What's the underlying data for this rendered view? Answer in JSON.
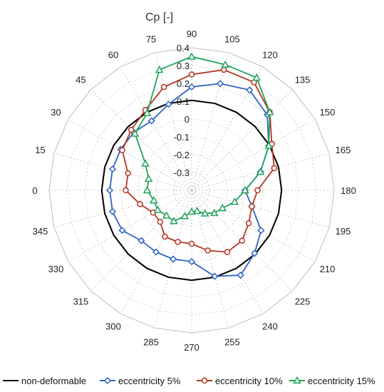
{
  "chart_data": {
    "type": "polar-line",
    "title": "Cp [-]",
    "angles": [
      0,
      15,
      30,
      45,
      60,
      75,
      90,
      105,
      120,
      135,
      150,
      165,
      180,
      195,
      210,
      225,
      240,
      255,
      270,
      285,
      300,
      315,
      330,
      345
    ],
    "angle_labels": [
      "0",
      "15",
      "30",
      "45",
      "60",
      "75",
      "90",
      "105",
      "120",
      "135",
      "150",
      "165",
      "180",
      "195",
      "210",
      "225",
      "240",
      "255",
      "270",
      "285",
      "300",
      "315",
      "330",
      "345"
    ],
    "rlim": [
      -0.4,
      0.4
    ],
    "r_ticks": [
      -0.3,
      -0.2,
      -0.1,
      0,
      0.1,
      0.2,
      0.3,
      0.4
    ],
    "r_tick_labels": [
      "-0.3",
      "-0.2",
      "-0.1",
      "0",
      "0.1",
      "0.2",
      "0.3",
      "0.4"
    ],
    "grid": true,
    "legend_position": "bottom",
    "series": [
      {
        "name": "non-deformable",
        "color": "#000000",
        "marker": "none",
        "values": [
          0.105,
          0.105,
          0.105,
          0.105,
          0.105,
          0.105,
          0.105,
          0.105,
          0.105,
          0.105,
          0.105,
          0.105,
          0.105,
          0.105,
          0.105,
          0.105,
          0.105,
          0.105,
          0.105,
          0.105,
          0.105,
          0.105,
          0.105,
          0.105
        ]
      },
      {
        "name": "eccentricity 5%",
        "color": "#2e63c4",
        "marker": "diamond",
        "values": [
          0.06,
          0.06,
          0.06,
          0.06,
          0.05,
          0.1,
          0.18,
          0.22,
          0.25,
          0.2,
          0.1,
          0.0,
          -0.1,
          -0.05,
          0.05,
          0.1,
          0.15,
          0.1,
          0.0,
          0.0,
          0.0,
          0.0,
          0.05,
          0.06
        ]
      },
      {
        "name": "eccentricity 10%",
        "color": "#b5351f",
        "marker": "circle",
        "values": [
          -0.03,
          -0.03,
          0.05,
          0.08,
          0.12,
          0.2,
          0.25,
          0.3,
          0.3,
          0.22,
          0.12,
          0.08,
          -0.03,
          -0.05,
          -0.03,
          0.0,
          0.0,
          -0.05,
          -0.1,
          -0.1,
          -0.1,
          -0.15,
          -0.15,
          -0.1
        ]
      },
      {
        "name": "eccentricity 15%",
        "color": "#21a35a",
        "marker": "triangle",
        "values": [
          -0.15,
          -0.15,
          -0.1,
          0.05,
          0.1,
          0.3,
          0.35,
          0.33,
          0.33,
          0.22,
          0.1,
          0.0,
          -0.1,
          -0.15,
          -0.2,
          -0.22,
          -0.25,
          -0.28,
          -0.28,
          -0.25,
          -0.2,
          -0.2,
          -0.18,
          -0.18
        ]
      }
    ]
  }
}
